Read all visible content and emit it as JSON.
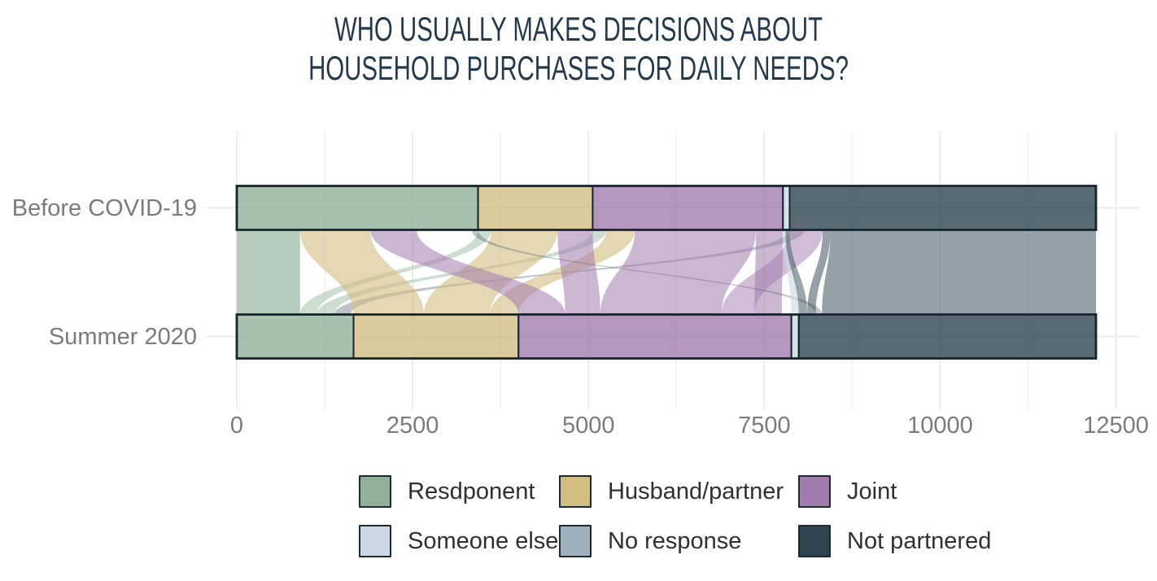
{
  "title": {
    "line1": "WHO USUALLY MAKES DECISIONS ABOUT",
    "line2": "HOUSEHOLD PURCHASES FOR DAILY NEEDS?"
  },
  "palette": {
    "green": "#92b19b",
    "tan": "#d2bd82",
    "purple": "#a37cae",
    "lightblue": "#ccd9e3",
    "greyblue": "#9fb0bc",
    "slate": "#2e4450"
  },
  "style_colors": {
    "title_text": "#24394a",
    "axis_text": "#7b7b7b",
    "legend_text": "#303030",
    "bar_stroke": "#17252f",
    "major_grid": "#e9e9e9",
    "minor_grid": "#f1f1f1",
    "row_grid": "#ececec",
    "background": "#ffffff"
  },
  "chart_data": {
    "type": "alluvial_stacked_bar",
    "title": "WHO USUALLY MAKES DECISIONS ABOUT HOUSEHOLD PURCHASES FOR DAILY NEEDS?",
    "categories": [
      "Before COVID-19",
      "Summer 2020"
    ],
    "xlim": [
      0,
      12500
    ],
    "x_ticks": [
      0,
      2500,
      5000,
      7500,
      10000,
      12500
    ],
    "x_minor_ticks": [
      1250,
      3750,
      6250,
      8750,
      11250
    ],
    "grid": true,
    "legend_position": "bottom",
    "legend": [
      {
        "label": "Resdponent",
        "color": "green"
      },
      {
        "label": "Husband/partner",
        "color": "tan"
      },
      {
        "label": "Joint",
        "color": "purple"
      },
      {
        "label": "Someone else",
        "color": "lightblue"
      },
      {
        "label": "No response",
        "color": "greyblue"
      },
      {
        "label": "Not partnered",
        "color": "slate"
      }
    ],
    "series": [
      {
        "category": "Before COVID-19",
        "segments": [
          {
            "name": "Resdponent",
            "value": 3430
          },
          {
            "name": "Husband/partner",
            "value": 1630
          },
          {
            "name": "Joint",
            "value": 2705
          },
          {
            "name": "Someone else",
            "value": 95
          },
          {
            "name": "No response",
            "value": 0
          },
          {
            "name": "Not partnered",
            "value": 4355
          }
        ]
      },
      {
        "category": "Summer 2020",
        "segments": [
          {
            "name": "Resdponent",
            "value": 1660
          },
          {
            "name": "Husband/partner",
            "value": 2345
          },
          {
            "name": "Joint",
            "value": 3880
          },
          {
            "name": "Someone else",
            "value": 105
          },
          {
            "name": "No response",
            "value": 0
          },
          {
            "name": "Not partnered",
            "value": 4225
          }
        ]
      }
    ],
    "flows": [
      {
        "from": "Resdponent",
        "to": "Resdponent",
        "color": "green",
        "opacity": 0.65,
        "top": [
          0,
          900
        ],
        "bottom": [
          0,
          900
        ]
      },
      {
        "from": "Husband/partner",
        "to": "Resdponent",
        "color": "green",
        "opacity": 0.45,
        "top": [
          3430,
          3620
        ],
        "bottom": [
          900,
          1140
        ]
      },
      {
        "from": "Joint",
        "to": "Resdponent",
        "color": "green",
        "opacity": 0.45,
        "top": [
          5060,
          5255
        ],
        "bottom": [
          1140,
          1385
        ]
      },
      {
        "from": "Not partnered",
        "to": "Resdponent",
        "color": "slate",
        "opacity": 0.32,
        "top": [
          7860,
          8070
        ],
        "bottom": [
          1385,
          1620
        ]
      },
      {
        "from": "Resdponent",
        "to": "Husband/partner",
        "color": "tan",
        "opacity": 0.6,
        "top": [
          900,
          1900
        ],
        "bottom": [
          1660,
          2660
        ]
      },
      {
        "from": "Husband/partner",
        "to": "Husband/partner",
        "color": "tan",
        "opacity": 0.6,
        "top": [
          3620,
          4560
        ],
        "bottom": [
          2660,
          3600
        ]
      },
      {
        "from": "Joint",
        "to": "Husband/partner",
        "color": "tan",
        "opacity": 0.6,
        "top": [
          5255,
          5660
        ],
        "bottom": [
          3600,
          4005
        ]
      },
      {
        "from": "Resdponent",
        "to": "Joint",
        "color": "purple",
        "opacity": 0.55,
        "top": [
          1900,
          2560
        ],
        "bottom": [
          4005,
          4670
        ]
      },
      {
        "from": "Husband/partner",
        "to": "Joint",
        "color": "purple",
        "opacity": 0.55,
        "top": [
          4560,
          5060
        ],
        "bottom": [
          4670,
          5170
        ]
      },
      {
        "from": "Joint",
        "to": "Joint",
        "color": "purple",
        "opacity": 0.55,
        "top": [
          5660,
          7380
        ],
        "bottom": [
          5170,
          6890
        ]
      },
      {
        "from": "Not partnered",
        "to": "Joint",
        "color": "purple",
        "opacity": 0.5,
        "top": [
          7860,
          8330
        ],
        "bottom": [
          6890,
          7360
        ]
      },
      {
        "from": "Joint",
        "to": "Joint",
        "color": "purple",
        "opacity": 0.55,
        "top": [
          7380,
          7765
        ],
        "bottom": [
          7360,
          7750
        ]
      },
      {
        "from": "Husband/partner",
        "to": "Not partnered",
        "color": "slate",
        "opacity": 0.3,
        "top": [
          3340,
          3430
        ],
        "bottom": [
          8230,
          8320
        ]
      },
      {
        "from": "Someone else",
        "to": "Someone else",
        "color": "lightblue",
        "opacity": 0.6,
        "top": [
          7765,
          7860
        ],
        "bottom": [
          7885,
          7990
        ]
      },
      {
        "from": "Joint",
        "to": "Not partnered",
        "color": "slate",
        "opacity": 0.48,
        "top": [
          7800,
          7860
        ],
        "bottom": [
          7990,
          8110
        ]
      },
      {
        "from": "Not partnered",
        "to": "Not partnered",
        "color": "slate",
        "opacity": 0.5,
        "top": [
          8330,
          8440
        ],
        "bottom": [
          8110,
          8230
        ]
      },
      {
        "from": "Not partnered",
        "to": "Not partnered",
        "color": "slate",
        "opacity": 0.5,
        "top": [
          8440,
          12215
        ],
        "bottom": [
          8320,
          12215
        ]
      }
    ]
  }
}
